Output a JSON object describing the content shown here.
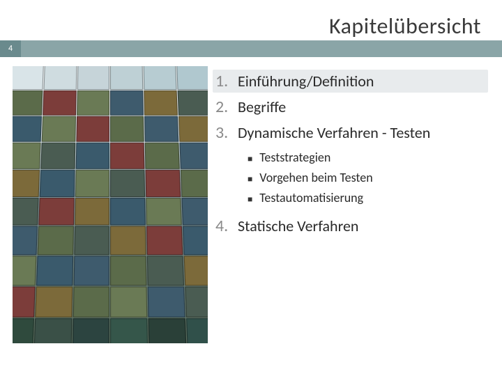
{
  "title": "Kapitelübersicht",
  "page_number": "4",
  "colors": {
    "page_num_bg": "#6a8a8d",
    "bar_bg": "#8aa5a7",
    "title_color": "#3a3a3a",
    "text_color": "#2a2a2a",
    "num_color": "#8a8a8a",
    "highlight_bg": "#e8ebed",
    "background": "#ffffff"
  },
  "fontsize": {
    "title": 32,
    "item": 22,
    "subitem": 18,
    "page_num": 12
  },
  "toc": {
    "items": [
      {
        "num": "1.",
        "label": "Einführung/Definition",
        "highlighted": true
      },
      {
        "num": "2.",
        "label": "Begriffe",
        "highlighted": false
      },
      {
        "num": "3.",
        "label": "Dynamische Verfahren - Testen",
        "highlighted": false,
        "sub": [
          {
            "label": "Teststrategien"
          },
          {
            "label": "Vorgehen beim Testen"
          },
          {
            "label": "Testautomatisierung"
          }
        ]
      },
      {
        "num": "4.",
        "label": "Statische Verfahren",
        "highlighted": false
      }
    ]
  },
  "image": {
    "description": "stacked-shipping-containers",
    "rows": 10,
    "cols": 6,
    "cell_colors": [
      "#d9e4e8",
      "#cfdce0",
      "#c6d4d9",
      "#bed0d5",
      "#b7ccd2",
      "#b0c8cf",
      "#5b6b4a",
      "#7c3d3a",
      "#6a7a55",
      "#3e5b6d",
      "#7c6a3a",
      "#4a5c52",
      "#3a5a6c",
      "#6a7a55",
      "#7c3d3a",
      "#5b6b4a",
      "#3e5b6d",
      "#7c6a3a",
      "#6a7a55",
      "#4a5c52",
      "#3a5a6c",
      "#7c3d3a",
      "#5b6b4a",
      "#3e5b6d",
      "#7c6a3a",
      "#3a5a6c",
      "#6a7a55",
      "#4a5c52",
      "#7c3d3a",
      "#5b6b4a",
      "#4a5c52",
      "#7c3d3a",
      "#7c6a3a",
      "#3a5a6c",
      "#6a7a55",
      "#3e5b6d",
      "#3e5b6d",
      "#5b6b4a",
      "#4a5c52",
      "#7c6a3a",
      "#7c3d3a",
      "#3a5a6c",
      "#6a7a55",
      "#3a5a6c",
      "#3e5b6d",
      "#5b6b4a",
      "#4a5c52",
      "#7c6a3a",
      "#7c3d3a",
      "#7c6a3a",
      "#5b6b4a",
      "#6a7a55",
      "#3e5b6d",
      "#4a5c52",
      "#2f4a3d",
      "#3a5047",
      "#2c4440",
      "#35564a",
      "#2a4038",
      "#30504a"
    ]
  }
}
